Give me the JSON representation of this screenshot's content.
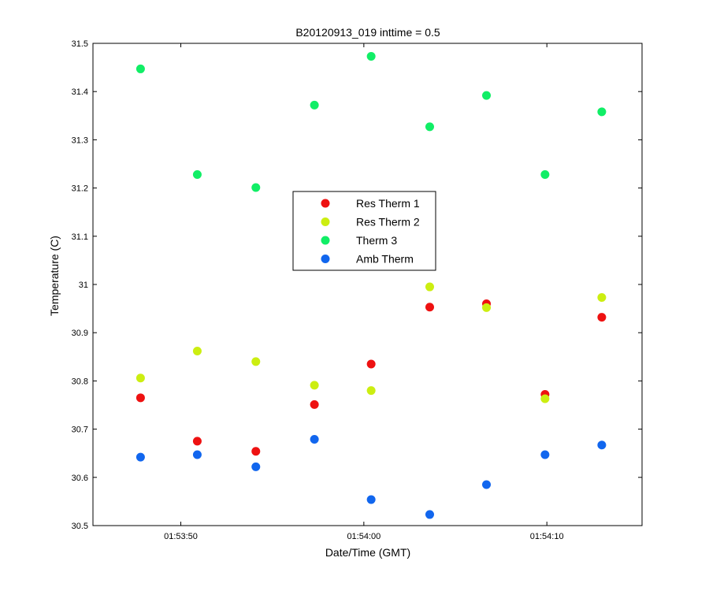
{
  "chart_data": {
    "type": "scatter",
    "title": "B20120913_019 inttime = 0.5",
    "xlabel": "Date/Time (GMT)",
    "ylabel": "Temperature (C)",
    "x_axis": {
      "kind": "time",
      "range": [
        "01:53:45.2",
        "01:54:15.2"
      ],
      "ticks": [
        "01:53:50",
        "01:54:00",
        "01:54:10"
      ]
    },
    "ylim": [
      30.5,
      31.5
    ],
    "y_ticks": [
      "30.5",
      "30.6",
      "30.7",
      "30.8",
      "30.9",
      "31",
      "31.1",
      "31.2",
      "31.3",
      "31.4",
      "31.5"
    ],
    "grid": false,
    "legend_position": "center",
    "x": [
      "01:53:47.8",
      "01:53:50.9",
      "01:53:54.1",
      "01:53:57.3",
      "01:54:00.4",
      "01:54:03.6",
      "01:54:06.7",
      "01:54:09.9",
      "01:54:13.0"
    ],
    "series": [
      {
        "name": "Res Therm 1",
        "color": "#ee1111",
        "values": [
          30.765,
          30.675,
          30.654,
          30.751,
          30.835,
          30.953,
          30.96,
          30.772,
          30.932
        ]
      },
      {
        "name": "Res Therm 2",
        "color": "#ccee11",
        "values": [
          30.806,
          30.862,
          30.84,
          30.791,
          30.78,
          30.995,
          30.952,
          30.763,
          30.973
        ]
      },
      {
        "name": "Therm 3",
        "color": "#11ee66",
        "values": [
          31.447,
          31.228,
          31.201,
          31.372,
          31.473,
          31.327,
          31.392,
          31.228,
          31.358
        ]
      },
      {
        "name": "Amb Therm",
        "color": "#1166ee",
        "values": [
          30.642,
          30.647,
          30.622,
          30.679,
          30.554,
          30.523,
          30.585,
          30.647,
          30.667
        ]
      }
    ]
  }
}
